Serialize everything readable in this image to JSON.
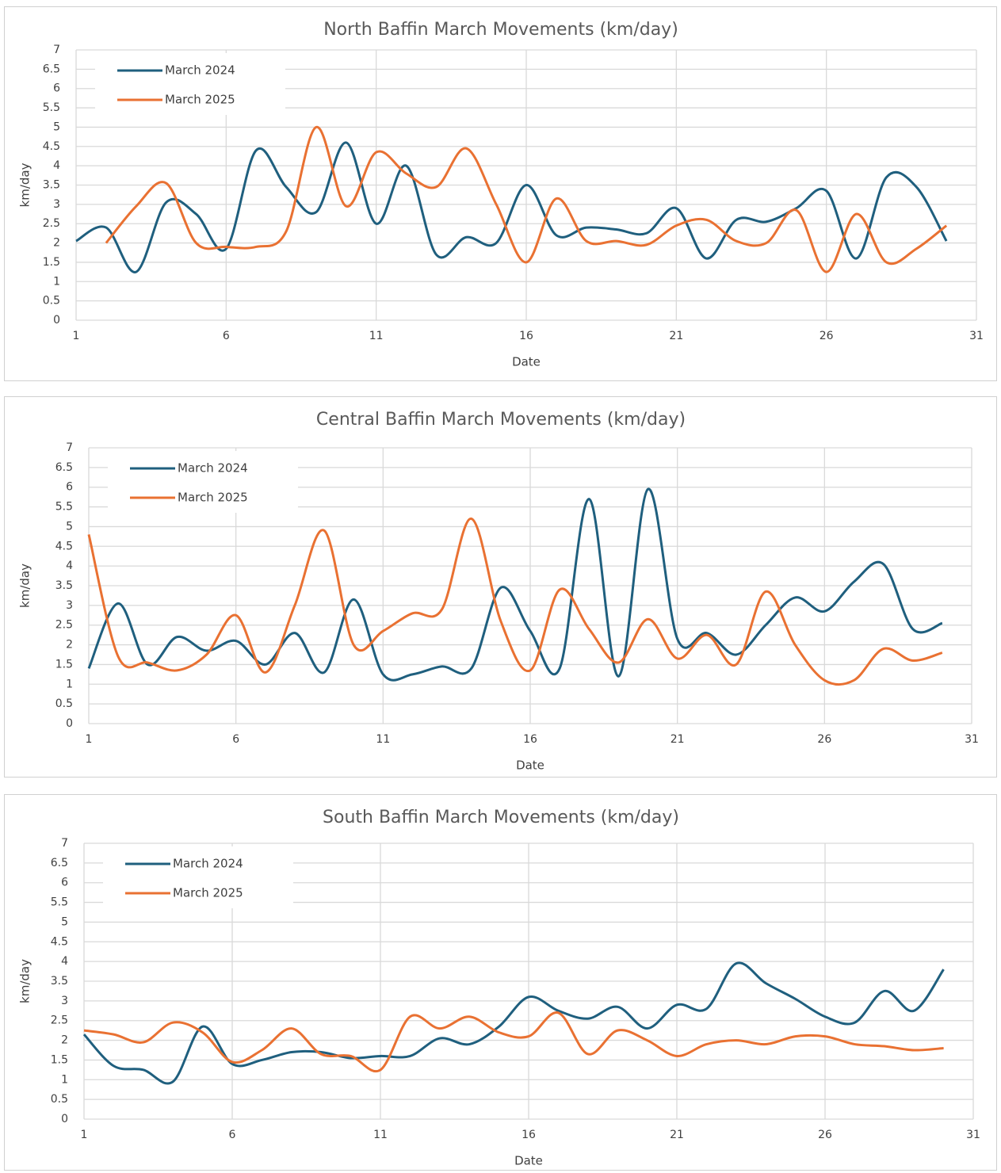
{
  "chart_data": [
    {
      "type": "line",
      "title": "North Baffin March Movements (km/day)",
      "x_label": "Date",
      "y_label": "km/day",
      "x": [
        1,
        2,
        3,
        4,
        5,
        6,
        7,
        8,
        9,
        10,
        11,
        12,
        13,
        14,
        15,
        16,
        17,
        18,
        19,
        20,
        21,
        22,
        23,
        24,
        25,
        26,
        27,
        28,
        29,
        30
      ],
      "series": [
        {
          "name": "March 2024",
          "color": "#1f5f7e",
          "values": [
            2.05,
            2.4,
            1.25,
            3.05,
            2.75,
            1.85,
            4.4,
            3.45,
            2.8,
            4.6,
            2.5,
            4.0,
            1.7,
            2.15,
            2.0,
            3.5,
            2.2,
            2.4,
            2.35,
            2.25,
            2.9,
            1.6,
            2.6,
            2.55,
            2.9,
            3.35,
            1.6,
            3.7,
            3.45,
            2.05
          ]
        },
        {
          "name": "March 2025",
          "color": "#e97132",
          "values": [
            null,
            2.0,
            2.95,
            3.55,
            2.0,
            1.9,
            1.9,
            2.3,
            5.0,
            2.95,
            4.35,
            3.8,
            3.45,
            4.45,
            3.0,
            1.5,
            3.15,
            2.05,
            2.05,
            1.95,
            2.45,
            2.6,
            2.05,
            2.0,
            2.85,
            1.25,
            2.75,
            1.5,
            1.85,
            2.45
          ]
        }
      ],
      "xlim": [
        1,
        31
      ],
      "xticks": [
        1,
        6,
        11,
        16,
        21,
        26,
        31
      ],
      "ylim": [
        0,
        7
      ],
      "yticks": [
        0,
        0.5,
        1,
        1.5,
        2,
        2.5,
        3,
        3.5,
        4,
        4.5,
        5,
        5.5,
        6,
        6.5,
        7
      ],
      "grid": true,
      "legend": "top-left"
    },
    {
      "type": "line",
      "title": "Central Baffin March Movements (km/day)",
      "x_label": "Date",
      "y_label": "km/day",
      "x": [
        1,
        2,
        3,
        4,
        5,
        6,
        7,
        8,
        9,
        10,
        11,
        12,
        13,
        14,
        15,
        16,
        17,
        18,
        19,
        20,
        21,
        22,
        23,
        24,
        25,
        26,
        27,
        28,
        29,
        30
      ],
      "series": [
        {
          "name": "March 2024",
          "color": "#1f5f7e",
          "values": [
            1.4,
            3.05,
            1.5,
            2.2,
            1.85,
            2.1,
            1.5,
            2.3,
            1.3,
            3.15,
            1.25,
            1.25,
            1.45,
            1.4,
            3.45,
            2.35,
            1.4,
            5.7,
            1.2,
            5.95,
            2.15,
            2.3,
            1.75,
            2.5,
            3.2,
            2.85,
            3.6,
            4.05,
            2.4,
            2.55
          ]
        },
        {
          "name": "March 2025",
          "color": "#e97132",
          "values": [
            4.8,
            1.7,
            1.55,
            1.35,
            1.75,
            2.75,
            1.3,
            3.0,
            4.9,
            2.0,
            2.35,
            2.8,
            2.9,
            5.2,
            2.6,
            1.35,
            3.4,
            2.4,
            1.55,
            2.65,
            1.65,
            2.25,
            1.5,
            3.35,
            2.0,
            1.1,
            1.1,
            1.9,
            1.6,
            1.8
          ]
        }
      ],
      "xlim": [
        1,
        31
      ],
      "xticks": [
        1,
        6,
        11,
        16,
        21,
        26,
        31
      ],
      "ylim": [
        0,
        7
      ],
      "yticks": [
        0,
        0.5,
        1,
        1.5,
        2,
        2.5,
        3,
        3.5,
        4,
        4.5,
        5,
        5.5,
        6,
        6.5,
        7
      ],
      "grid": true,
      "legend": "top-left"
    },
    {
      "type": "line",
      "title": "South Baffin March Movements (km/day)",
      "x_label": "Date",
      "y_label": "km/day",
      "x": [
        1,
        2,
        3,
        4,
        5,
        6,
        7,
        8,
        9,
        10,
        11,
        12,
        13,
        14,
        15,
        16,
        17,
        18,
        19,
        20,
        21,
        22,
        23,
        24,
        25,
        26,
        27,
        28,
        29,
        30
      ],
      "series": [
        {
          "name": "March 2024",
          "color": "#1f5f7e",
          "values": [
            2.15,
            1.35,
            1.25,
            0.95,
            2.35,
            1.4,
            1.5,
            1.7,
            1.7,
            1.55,
            1.6,
            1.6,
            2.05,
            1.9,
            2.35,
            3.1,
            2.75,
            2.55,
            2.85,
            2.3,
            2.9,
            2.8,
            3.95,
            3.45,
            3.05,
            2.6,
            2.45,
            3.25,
            2.75,
            3.8
          ]
        },
        {
          "name": "March 2025",
          "color": "#e97132",
          "values": [
            2.25,
            2.15,
            1.95,
            2.45,
            2.2,
            1.45,
            1.75,
            2.3,
            1.65,
            1.6,
            1.25,
            2.6,
            2.3,
            2.6,
            2.2,
            2.1,
            2.7,
            1.65,
            2.25,
            2.0,
            1.6,
            1.9,
            2.0,
            1.9,
            2.1,
            2.1,
            1.9,
            1.85,
            1.75,
            1.8
          ]
        }
      ],
      "xlim": [
        1,
        31
      ],
      "xticks": [
        1,
        6,
        11,
        16,
        21,
        26,
        31
      ],
      "ylim": [
        0,
        7
      ],
      "yticks": [
        0,
        0.5,
        1,
        1.5,
        2,
        2.5,
        3,
        3.5,
        4,
        4.5,
        5,
        5.5,
        6,
        6.5,
        7
      ],
      "grid": true,
      "legend": "top-left"
    }
  ]
}
